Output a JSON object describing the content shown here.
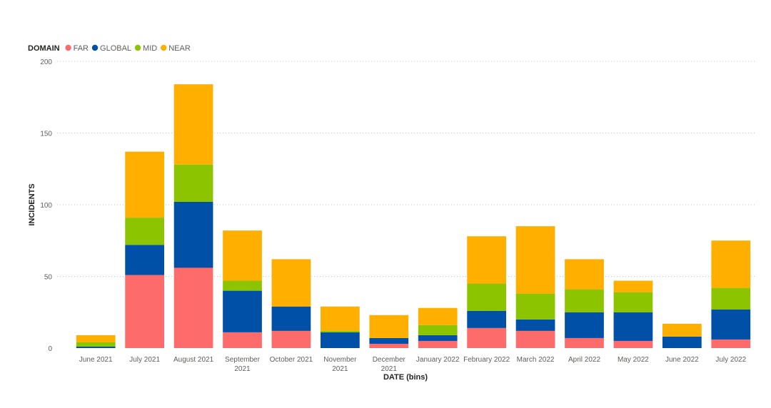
{
  "chart_data": {
    "type": "bar",
    "stacked": true,
    "xlabel": "DATE (bins)",
    "ylabel": "INCIDENTS",
    "ylim": [
      0,
      200
    ],
    "yticks": [
      0,
      50,
      100,
      150,
      200
    ],
    "grid": true,
    "legend": {
      "title": "DOMAIN",
      "placement": "top-left",
      "entries": [
        "FAR",
        "GLOBAL",
        "MID",
        "NEAR"
      ]
    },
    "categories": [
      [
        "June 2021"
      ],
      [
        "July 2021"
      ],
      [
        "August 2021"
      ],
      [
        "September",
        "2021"
      ],
      [
        "October 2021"
      ],
      [
        "November",
        "2021"
      ],
      [
        "December",
        "2021"
      ],
      [
        "January 2022"
      ],
      [
        "February 2022"
      ],
      [
        "March 2022"
      ],
      [
        "April 2022"
      ],
      [
        "May 2022"
      ],
      [
        "June 2022"
      ],
      [
        "July 2022"
      ]
    ],
    "series": [
      {
        "name": "FAR",
        "color": "#fd6b6b",
        "values": [
          0,
          51,
          56,
          11,
          12,
          0,
          3,
          5,
          14,
          12,
          7,
          5,
          0,
          6
        ]
      },
      {
        "name": "GLOBAL",
        "color": "#0050a8",
        "values": [
          1,
          21,
          46,
          29,
          17,
          11,
          4,
          4,
          12,
          8,
          18,
          20,
          8,
          21
        ]
      },
      {
        "name": "MID",
        "color": "#8cc400",
        "values": [
          3,
          19,
          26,
          7,
          0,
          1,
          0,
          7,
          19,
          18,
          16,
          14,
          0,
          15
        ]
      },
      {
        "name": "NEAR",
        "color": "#ffaf00",
        "values": [
          5,
          46,
          56,
          35,
          33,
          17,
          16,
          12,
          33,
          47,
          21,
          8,
          9,
          33
        ]
      }
    ]
  }
}
